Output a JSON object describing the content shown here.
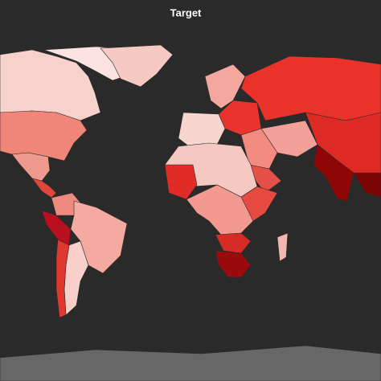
{
  "title": "Target"
}
